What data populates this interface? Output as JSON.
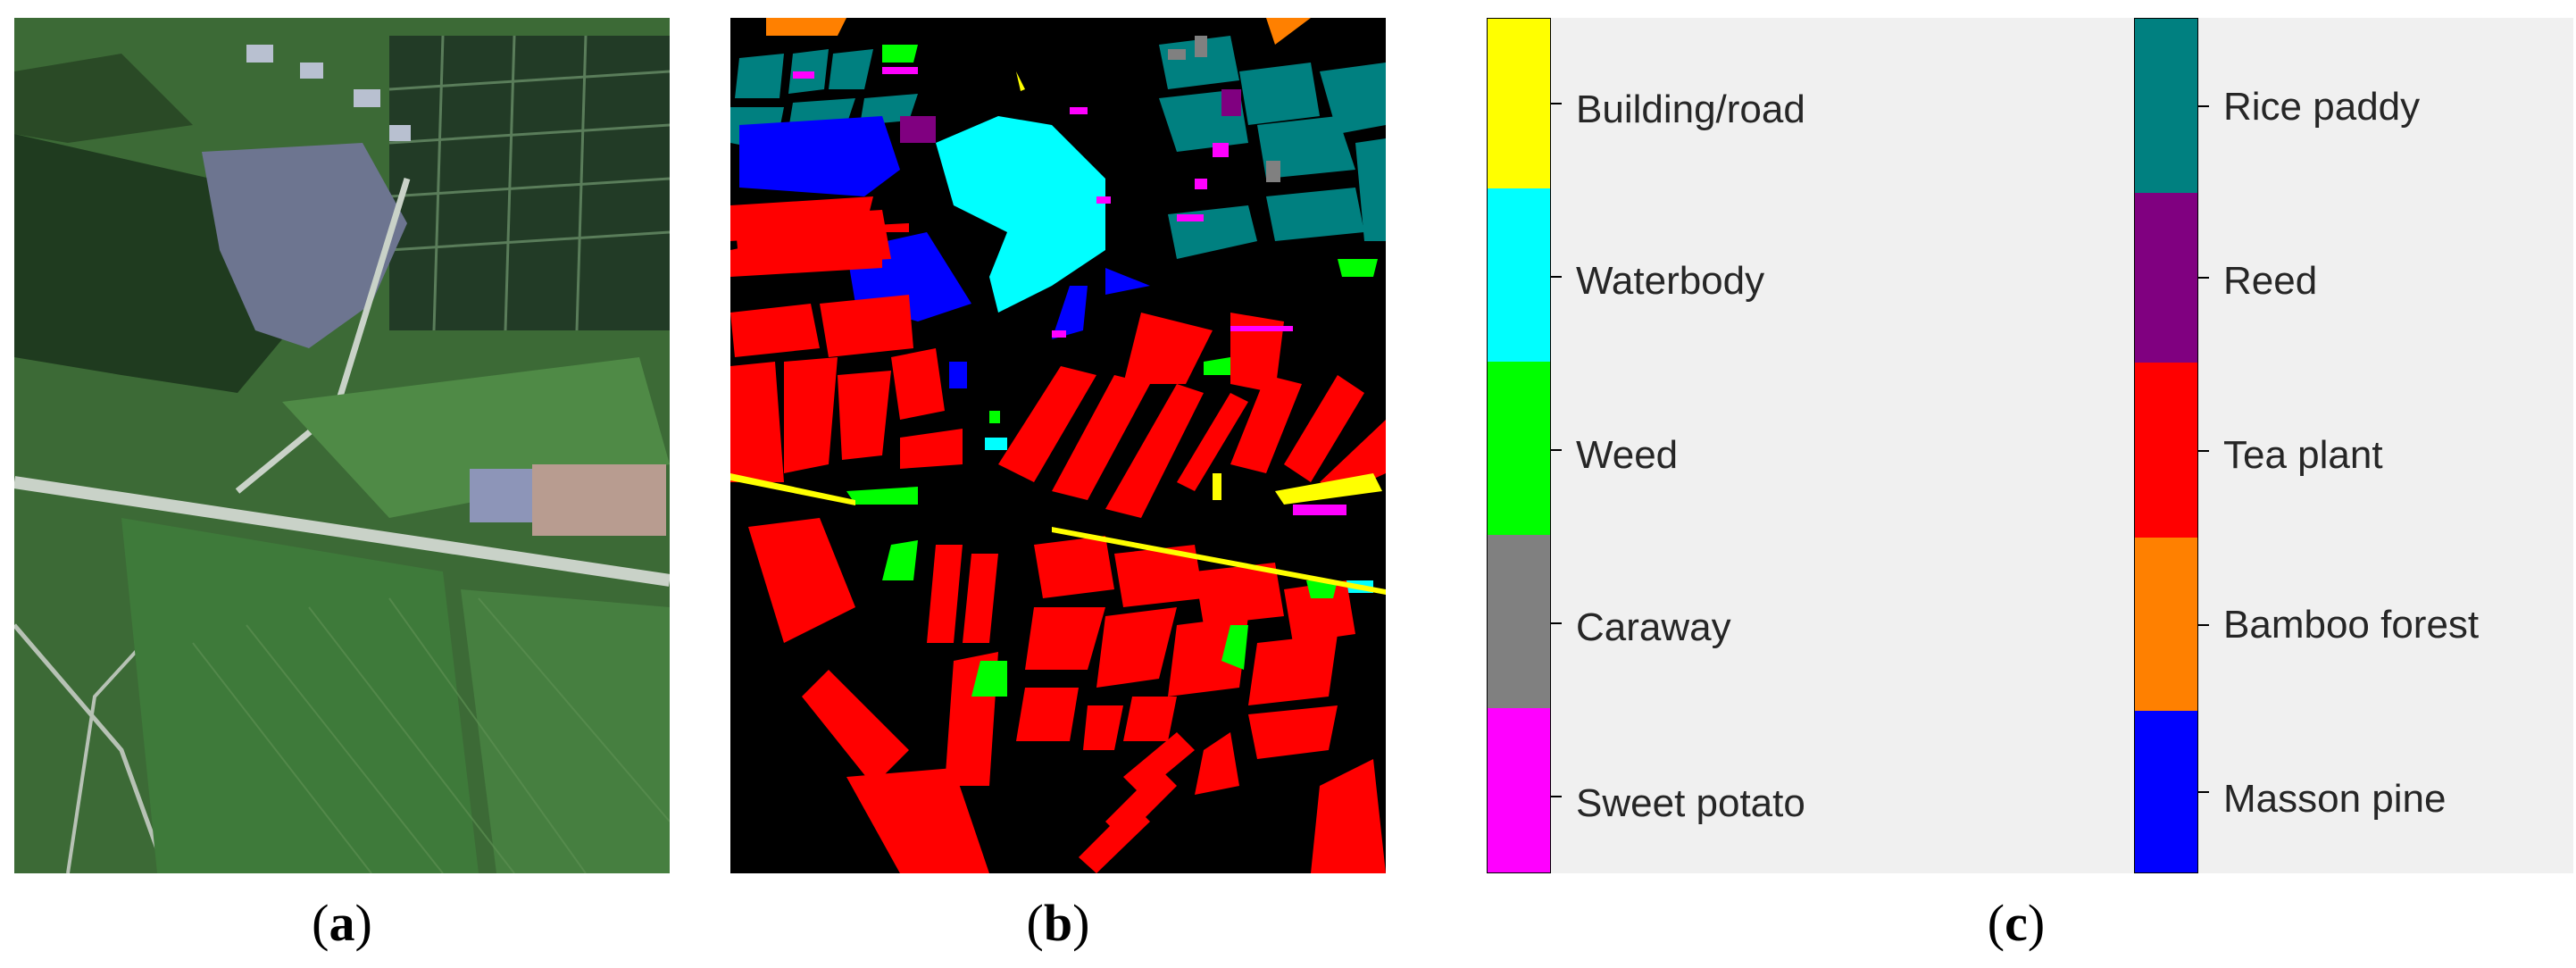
{
  "captions": {
    "a": "a",
    "b": "b",
    "c": "c"
  },
  "legend": {
    "left_column": [
      {
        "label": "Building/road",
        "color": "#ffff00"
      },
      {
        "label": "Waterbody",
        "color": "#00ffff"
      },
      {
        "label": "Weed",
        "color": "#00ff00"
      },
      {
        "label": "Caraway",
        "color": "#808080"
      },
      {
        "label": "Sweet potato",
        "color": "#ff00ff"
      }
    ],
    "right_column": [
      {
        "label": "Rice paddy",
        "color": "#008080"
      },
      {
        "label": "Reed",
        "color": "#800080"
      },
      {
        "label": "Tea plant",
        "color": "#ff0000"
      },
      {
        "label": "Bamboo forest",
        "color": "#ff8000"
      },
      {
        "label": "Masson pine",
        "color": "#0000ff"
      }
    ]
  },
  "colors": {
    "background_map": "#000000",
    "legend_background": "#f0f0f0"
  }
}
